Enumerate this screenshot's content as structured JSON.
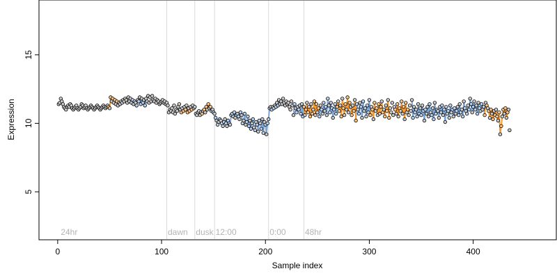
{
  "chart_data": {
    "type": "scatter",
    "xlabel": "Sample index",
    "ylabel": "Expression",
    "xlim": [
      -18,
      480
    ],
    "ylim": [
      1.5,
      19
    ],
    "xticks": [
      0,
      100,
      200,
      300,
      400
    ],
    "yticks": [
      5,
      10,
      15
    ],
    "grid": false,
    "colors": {
      "point_fill": "#c8c8c8",
      "point_stroke": "#000000",
      "warm_line": "#f39c34",
      "cool_line": "#7fa7d6",
      "separator": "#d9d9d9",
      "annotation": "#b3b3b3"
    },
    "sections": [
      {
        "label": "24hr",
        "x": 3
      },
      {
        "label": "dawn",
        "x": 106
      },
      {
        "label": "dusk",
        "x": 133
      },
      {
        "label": "12:00",
        "x": 152
      },
      {
        "label": "0:00",
        "x": 204
      },
      {
        "label": "48hr",
        "x": 238
      }
    ],
    "separators": [
      105,
      132,
      151,
      203,
      237
    ],
    "series": [
      {
        "x_start": 1,
        "y": [
          11.4,
          11.5,
          11.8,
          11.6,
          11.4,
          11.2,
          11.1,
          11.0,
          11.2,
          11.3,
          11.2,
          11.4,
          11.3,
          11.1,
          11.0,
          11.1,
          11.2,
          11.3,
          11.1,
          11.0,
          11.1,
          11.2,
          11.4,
          11.3,
          11.1,
          11.2,
          11.3,
          11.1,
          11.0,
          11.1,
          11.2,
          11.3,
          11.2,
          11.1,
          11.0,
          11.1,
          11.2,
          11.3,
          11.2,
          11.1,
          11.0,
          11.1,
          11.2,
          11.3,
          11.2,
          11.1,
          11.2,
          11.3,
          11.2,
          11.1,
          11.9,
          11.6,
          11.8,
          11.5,
          11.7,
          11.4,
          11.6,
          11.3,
          11.5,
          11.4,
          11.6,
          11.5,
          11.7,
          11.6,
          11.8,
          11.7,
          11.5,
          11.9,
          11.6,
          11.8,
          11.5,
          11.7,
          11.4,
          11.6,
          11.5,
          11.3,
          11.7,
          11.6,
          11.9,
          11.4,
          11.8,
          11.5,
          11.7,
          11.3,
          11.8,
          11.6,
          12.0,
          11.5,
          11.9,
          11.6,
          12.0,
          11.7,
          11.6,
          11.8,
          11.5,
          11.7,
          11.6,
          11.4,
          11.5,
          11.6,
          11.7,
          11.5,
          11.6,
          11.4,
          11.5,
          11.3,
          10.8,
          11.0,
          10.9,
          11.1,
          10.8,
          11.3,
          10.7,
          11.0,
          10.9,
          11.2,
          11.4,
          11.0,
          10.8,
          11.1,
          10.9,
          11.2,
          11.0,
          11.3,
          10.8,
          11.1,
          10.9,
          11.2,
          11.0,
          11.3,
          11.1,
          11.2,
          10.7,
          10.6,
          10.8,
          10.9,
          10.6,
          10.8,
          10.7,
          10.9,
          11.0,
          10.8,
          11.2,
          11.0,
          11.4,
          11.1,
          11.2,
          10.9,
          11.0,
          10.8,
          10.7,
          10.4,
          10.2,
          9.9,
          10.1,
          10.3,
          10.2,
          10.0,
          9.8,
          10.1,
          10.3,
          10.0,
          9.8,
          10.2,
          10.0,
          9.9,
          10.6,
          10.7,
          10.5,
          10.8,
          10.4,
          10.6,
          10.7,
          10.5,
          10.3,
          10.8,
          10.6,
          10.0,
          10.2,
          10.7,
          9.9,
          10.1,
          10.5,
          9.8,
          10.2,
          9.6,
          10.0,
          10.3,
          9.7,
          9.5,
          10.1,
          9.9,
          9.4,
          10.2,
          10.0,
          9.6,
          10.3,
          9.3,
          10.1,
          9.9,
          9.2,
          10.0,
          10.3,
          11.1,
          11.2,
          11.0,
          11.2,
          11.1,
          11.3,
          11.2,
          11.5,
          11.3,
          11.7,
          11.4,
          11.6,
          11.4,
          11.8,
          11.5,
          11.3,
          11.6,
          11.4,
          11.5,
          11.2,
          11.0,
          11.6,
          11.3,
          10.6,
          11.4,
          11.1,
          10.8,
          11.2,
          11.0,
          11.3,
          10.7,
          11.4,
          10.5,
          11.2,
          10.6,
          11.0,
          11.5,
          10.8,
          11.2,
          10.5,
          11.4,
          10.7,
          11.0,
          11.6,
          10.6,
          11.4,
          10.8,
          11.1,
          10.5,
          11.3,
          11.0,
          10.7,
          11.5,
          10.9,
          11.2,
          10.6,
          11.8,
          11.3,
          10.8,
          11.5,
          11.1,
          10.4,
          11.0,
          11.4,
          10.7,
          11.2,
          11.6,
          10.9,
          11.3,
          10.5,
          11.8,
          11.1,
          10.6,
          11.4,
          11.0,
          11.9,
          10.8,
          11.5,
          11.2,
          10.6,
          11.3,
          10.9,
          11.7,
          10.2,
          11.4,
          11.0,
          10.7,
          11.5,
          11.2,
          10.4,
          11.6,
          10.9,
          11.1,
          10.5,
          11.3,
          10.8,
          11.7,
          10.6,
          11.2,
          11.0,
          10.3,
          11.5,
          10.9,
          11.1,
          10.6,
          11.4,
          10.7,
          11.2,
          11.6,
          10.8,
          11.0,
          10.5,
          11.3,
          10.9,
          11.7,
          10.4,
          11.1,
          10.8,
          11.5,
          10.6,
          11.2,
          11.0,
          10.7,
          11.4,
          10.5,
          11.1,
          10.9,
          11.6,
          10.7,
          11.2,
          10.3,
          11.5,
          10.8,
          11.0,
          10.6,
          11.3,
          10.9,
          11.7,
          10.4,
          11.2,
          10.8,
          11.0,
          10.5,
          11.4,
          10.7,
          11.1,
          10.6,
          11.3,
          10.9,
          10.2,
          11.0,
          10.7,
          11.2,
          10.5,
          11.4,
          10.8,
          10.6,
          11.1,
          10.3,
          11.5,
          10.7,
          11.0,
          10.9,
          10.4,
          11.2,
          10.8,
          11.3,
          10.6,
          11.0,
          10.1,
          11.2,
          10.7,
          10.9,
          10.4,
          11.3,
          10.8,
          11.0,
          10.5,
          11.1,
          10.7,
          10.9,
          11.2,
          10.6,
          11.4,
          10.8,
          11.0,
          10.5,
          11.6,
          11.1,
          10.9,
          10.7,
          11.3,
          11.0,
          11.8,
          11.4,
          10.8,
          11.2,
          11.6,
          11.0,
          11.3,
          10.7,
          11.5,
          11.1,
          10.9,
          11.4,
          11.0,
          11.2,
          10.6,
          11.5,
          11.3,
          11.1,
          10.9,
          10.4,
          11.0,
          10.7,
          10.3,
          10.9,
          10.6,
          11.0,
          10.5,
          10.2,
          10.8,
          9.2,
          9.8,
          10.5,
          11.0,
          10.7,
          11.1,
          10.4,
          10.8,
          11.0,
          9.5
        ],
        "warm_segments": [
          [
            48,
            56
          ],
          [
            118,
            128
          ],
          [
            138,
            146
          ],
          [
            236,
            250
          ],
          [
            268,
            286
          ],
          [
            300,
            318
          ],
          [
            324,
            336
          ],
          [
            410,
            432
          ]
        ],
        "cool_segments": [
          [
            70,
            84
          ],
          [
            145,
            212
          ],
          [
            226,
            236
          ],
          [
            250,
            268
          ],
          [
            286,
            300
          ],
          [
            340,
            410
          ],
          [
            440,
            462
          ]
        ]
      }
    ]
  }
}
